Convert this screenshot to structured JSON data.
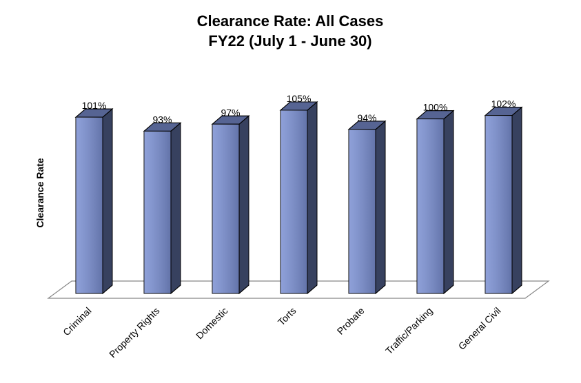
{
  "chart_data": {
    "type": "bar3d",
    "title": "Clearance Rate: All Cases",
    "subtitle": "FY22 (July 1 - June 30)",
    "y_label": "Clearance Rate",
    "categories": [
      "Criminal",
      "Property Rights",
      "Domestic",
      "Torts",
      "Probate",
      "Traffic/Parking",
      "General Civil"
    ],
    "values": [
      101,
      93,
      97,
      105,
      94,
      100,
      102
    ],
    "value_labels": [
      "101%",
      "93%",
      "97%",
      "105%",
      "94%",
      "100%",
      "102%"
    ],
    "color": "#7b90d3"
  }
}
